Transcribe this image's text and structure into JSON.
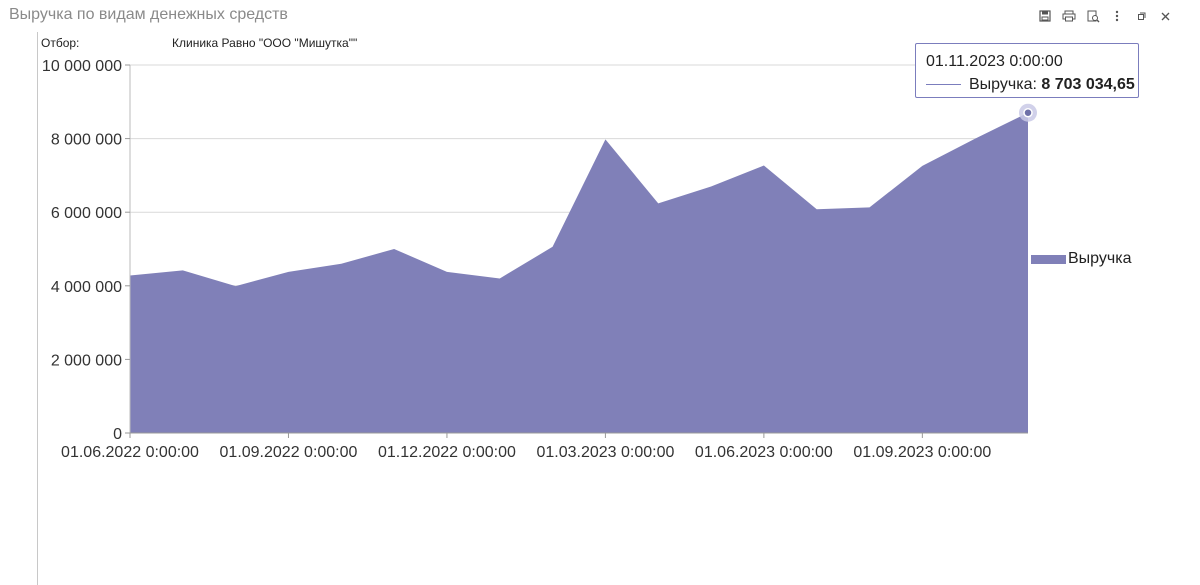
{
  "window": {
    "title": "Выручка по видам денежных средств",
    "toolbar": [
      "save-icon",
      "print-icon",
      "preview-icon",
      "more-icon",
      "restore-icon",
      "close-icon"
    ]
  },
  "filter": {
    "label": "Отбор:",
    "value": "Клиника Равно \"ООО \"Мишутка\"\""
  },
  "tooltip": {
    "date": "01.11.2023 0:00:00",
    "series_label": "Выручка:",
    "value_text": "8 703 034,65"
  },
  "colors": {
    "area": "#8080b8",
    "tooltip_border": "#7b7dbd",
    "grid": "#d9d9d9"
  },
  "chart_data": {
    "type": "area",
    "x": [
      "01.06.2022",
      "01.07.2022",
      "01.08.2022",
      "01.09.2022",
      "01.10.2022",
      "01.11.2022",
      "01.12.2022",
      "01.01.2023",
      "01.02.2023",
      "01.03.2023",
      "01.04.2023",
      "01.05.2023",
      "01.06.2023",
      "01.07.2023",
      "01.08.2023",
      "01.09.2023",
      "01.10.2023",
      "01.11.2023"
    ],
    "series": [
      {
        "name": "Выручка",
        "values": [
          4280000,
          4420000,
          3990000,
          4380000,
          4600000,
          5000000,
          4380000,
          4200000,
          5060000,
          7980000,
          6240000,
          6700000,
          7270000,
          6080000,
          6130000,
          7260000,
          8000000,
          8703034.65
        ]
      }
    ],
    "x_tick_labels": [
      "01.06.2022 0:00:00",
      "01.09.2022 0:00:00",
      "01.12.2022 0:00:00",
      "01.03.2023 0:00:00",
      "01.06.2023 0:00:00",
      "01.09.2023 0:00:00"
    ],
    "x_tick_indices": [
      0,
      3,
      6,
      9,
      12,
      15
    ],
    "y_ticks": [
      0,
      2000000,
      4000000,
      6000000,
      8000000,
      10000000
    ],
    "y_tick_labels": [
      "0",
      "2 000 000",
      "4 000 000",
      "6 000 000",
      "8 000 000",
      "10 000 000"
    ],
    "ylim": [
      0,
      10000000
    ],
    "grid": true,
    "legend": "right",
    "highlight_index": 17
  }
}
